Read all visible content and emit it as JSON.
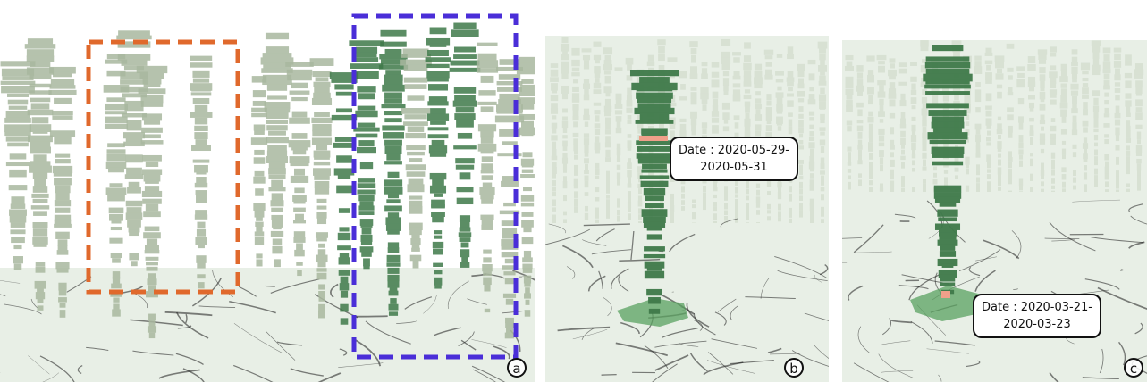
{
  "panels": [
    {
      "id": "a",
      "label": "a"
    },
    {
      "id": "b",
      "label": "b",
      "tooltip": {
        "line1": "Date : 2020-05-29-",
        "line2": "2020-05-31"
      }
    },
    {
      "id": "c",
      "label": "c",
      "tooltip": {
        "line1": "Date : 2020-03-21-",
        "line2": "2020-03-23"
      }
    }
  ],
  "colors": {
    "bar_light": "#a9b89f",
    "bar_dark": "#3f7a4a",
    "highlight_orange": "#e0692c",
    "highlight_purple": "#4a2ed8",
    "selected_band": "#f0a08a",
    "selected_region": "#5aa160",
    "map_background": "#e8efe6",
    "map_roads": "#1a1a1a"
  },
  "icons": [
    "dashed-selection-box",
    "time-slice-tooltip",
    "region-polygon"
  ]
}
